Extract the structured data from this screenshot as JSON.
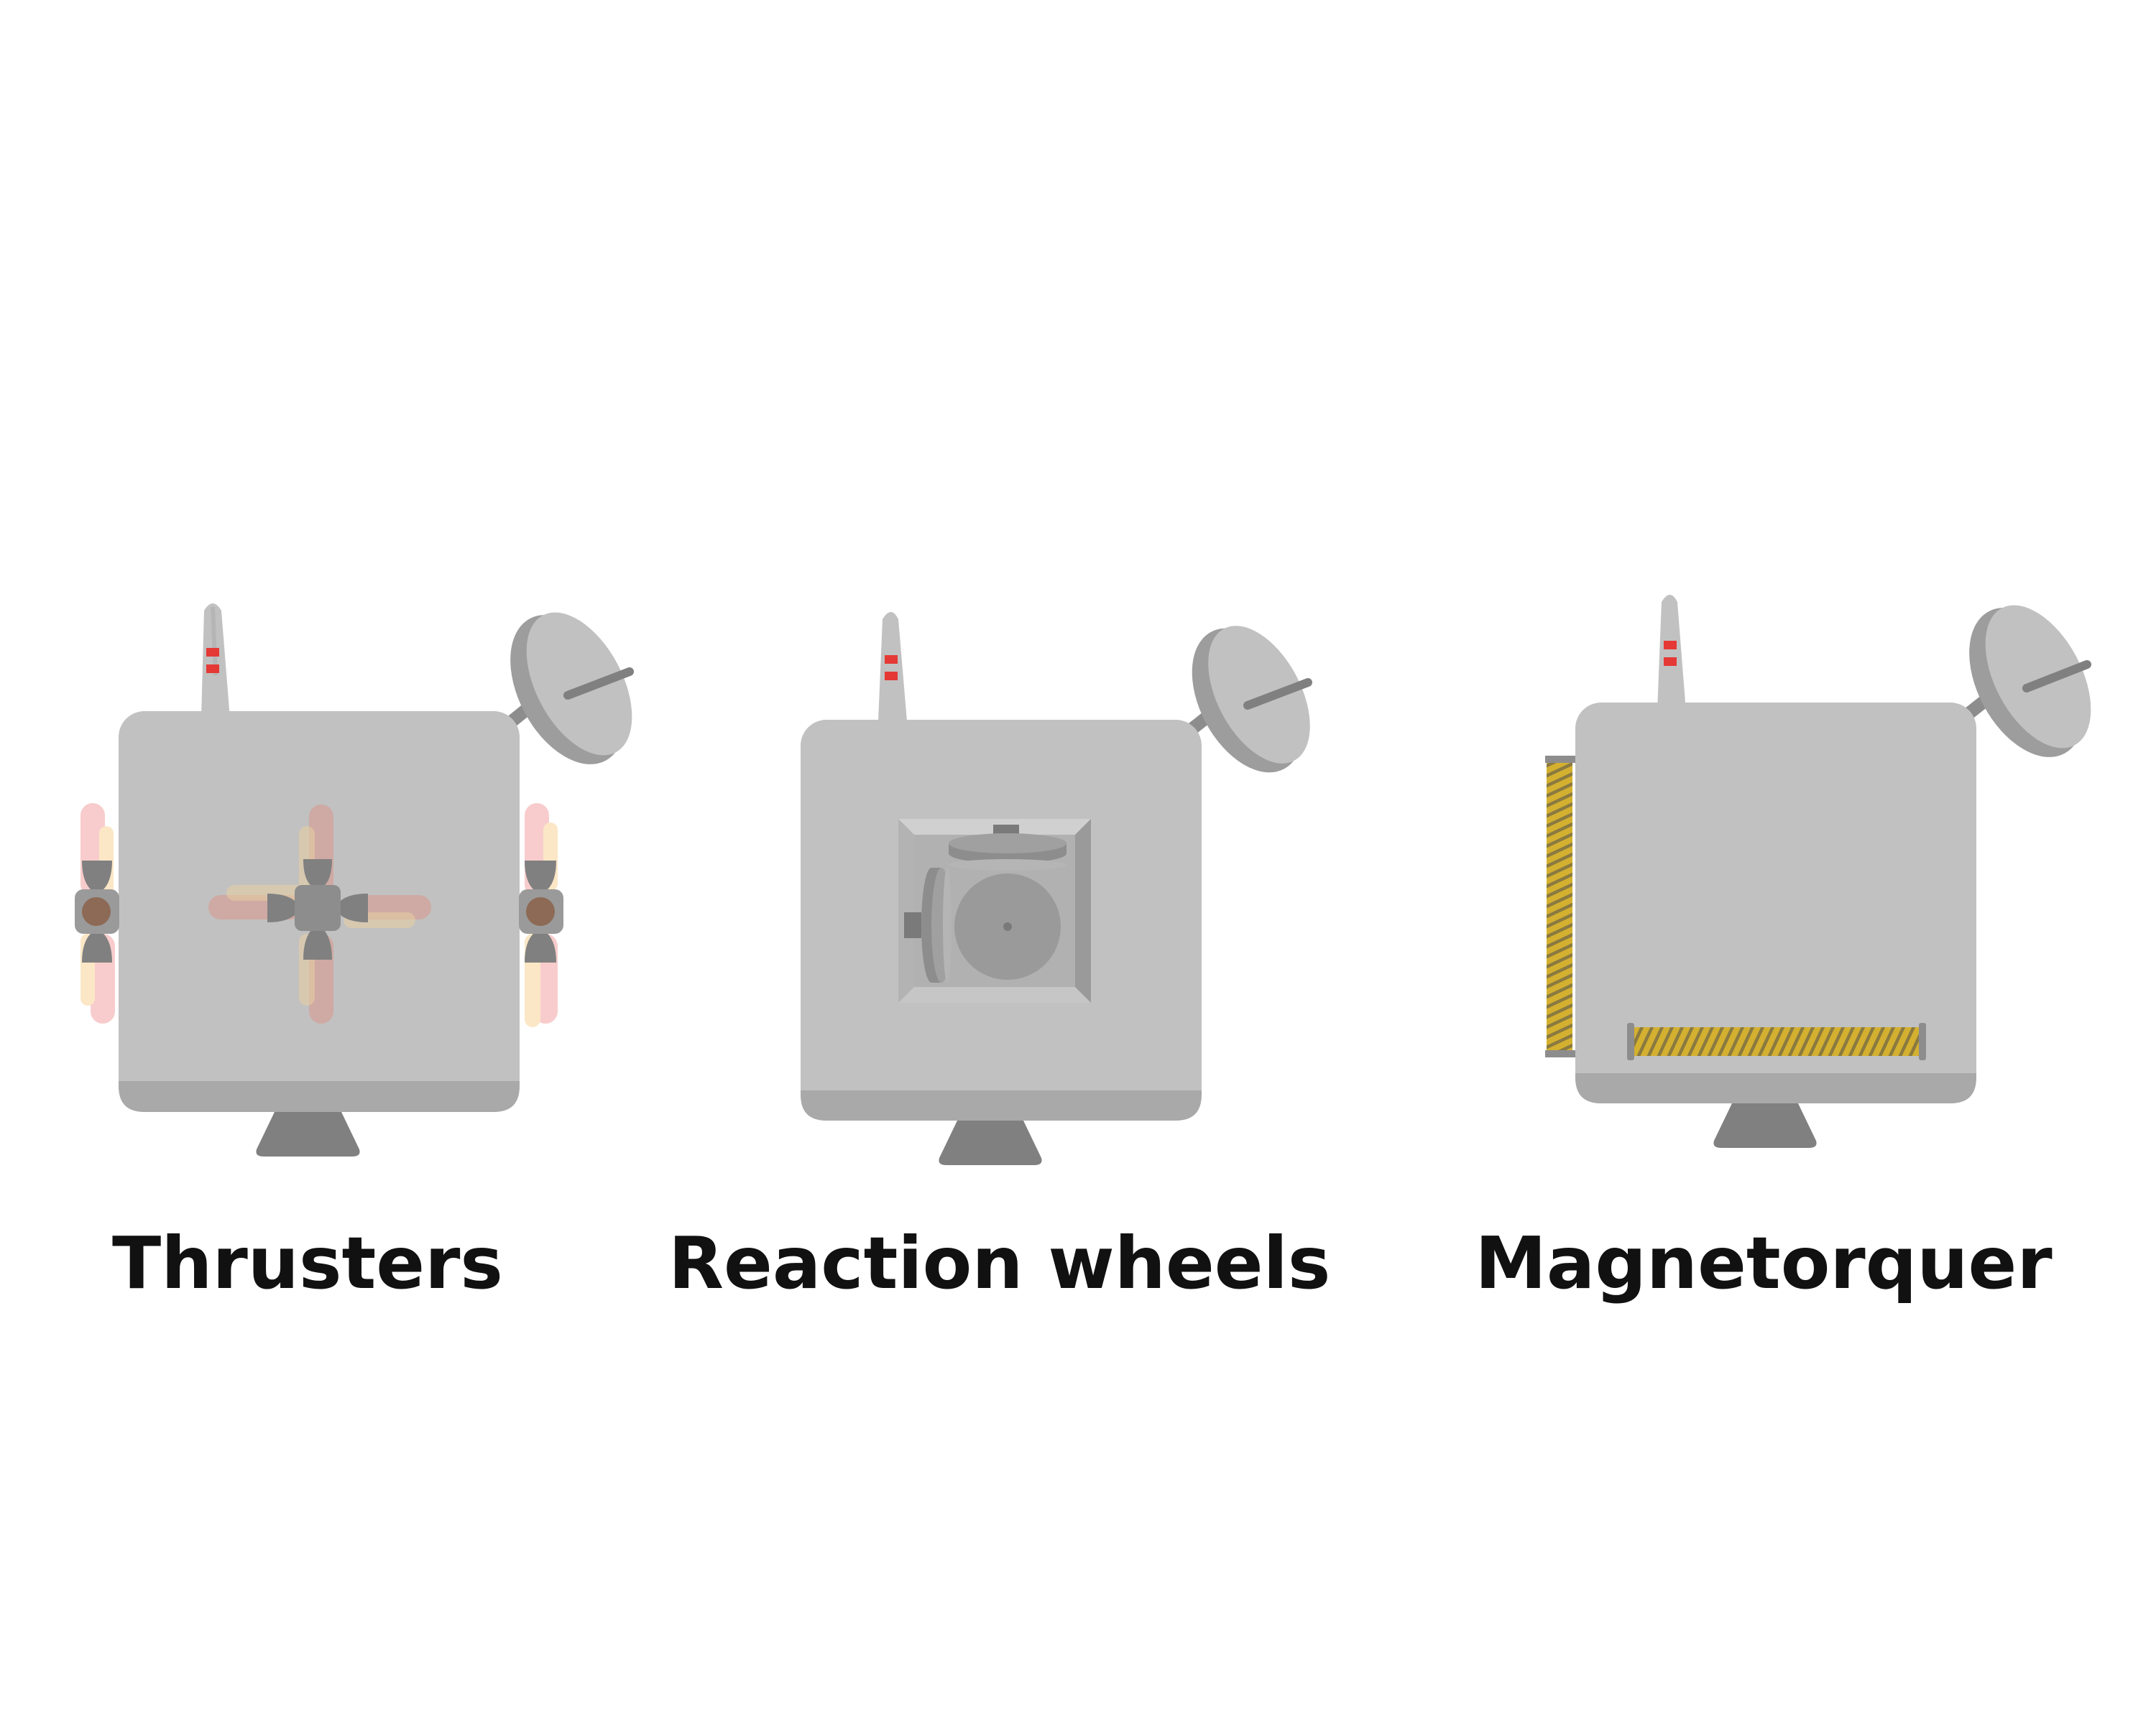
{
  "captions": {
    "thrusters": "Thrusters",
    "reaction_wheels": "Reaction wheels",
    "magnetorquer": "Magnetorquer"
  },
  "colors": {
    "body": "#c1c1c1",
    "body_shade": "#a9a9a9",
    "dark_part": "#808080",
    "mid_part": "#9a9a9a",
    "antenna_band": "#e53935",
    "coil": "#d4b030",
    "plume_pink": "#f7c6c6",
    "plume_cream": "#fbe7c6",
    "thruster_core": "#8d6a55",
    "text": "#111111"
  },
  "icons": [
    "satellite-icon",
    "dish-antenna-icon",
    "thruster-icon",
    "reaction-wheel-icon",
    "magnetorquer-coil-icon"
  ]
}
